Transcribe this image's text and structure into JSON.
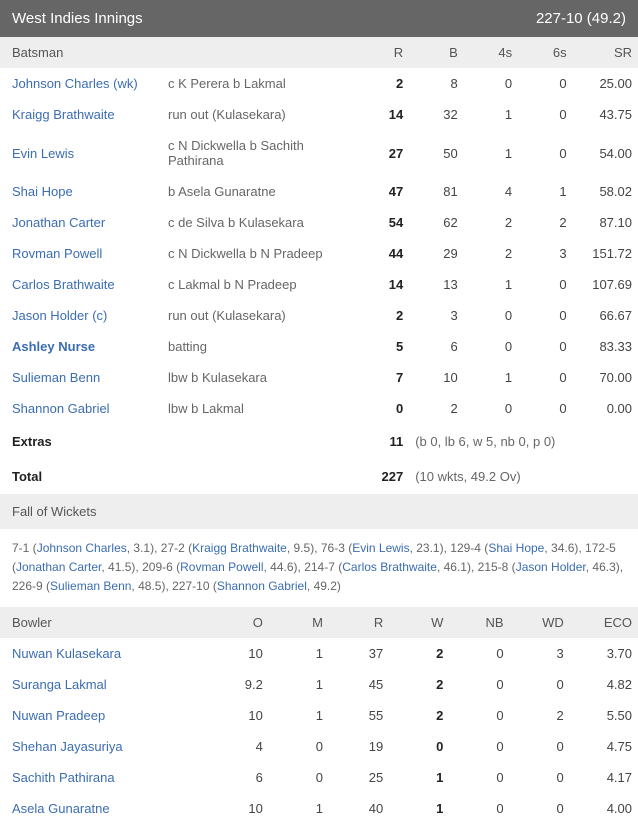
{
  "header": {
    "team": "West Indies Innings",
    "score": "227-10 (49.2)"
  },
  "batting": {
    "columns": {
      "batsman": "Batsman",
      "r": "R",
      "b": "B",
      "fours": "4s",
      "sixes": "6s",
      "sr": "SR"
    },
    "rows": [
      {
        "name": "Johnson Charles (wk)",
        "how": "c K Perera b Lakmal",
        "r": "2",
        "b": "8",
        "fours": "0",
        "sixes": "0",
        "sr": "25.00",
        "bold": false
      },
      {
        "name": "Kraigg Brathwaite",
        "how": "run out (Kulasekara)",
        "r": "14",
        "b": "32",
        "fours": "1",
        "sixes": "0",
        "sr": "43.75",
        "bold": false
      },
      {
        "name": "Evin Lewis",
        "how": "c N Dickwella b Sachith Pathirana",
        "r": "27",
        "b": "50",
        "fours": "1",
        "sixes": "0",
        "sr": "54.00",
        "bold": false
      },
      {
        "name": "Shai Hope",
        "how": "b Asela Gunaratne",
        "r": "47",
        "b": "81",
        "fours": "4",
        "sixes": "1",
        "sr": "58.02",
        "bold": false
      },
      {
        "name": "Jonathan Carter",
        "how": "c de Silva b Kulasekara",
        "r": "54",
        "b": "62",
        "fours": "2",
        "sixes": "2",
        "sr": "87.10",
        "bold": false
      },
      {
        "name": "Rovman Powell",
        "how": "c N Dickwella b N Pradeep",
        "r": "44",
        "b": "29",
        "fours": "2",
        "sixes": "3",
        "sr": "151.72",
        "bold": false
      },
      {
        "name": "Carlos Brathwaite",
        "how": "c Lakmal b N Pradeep",
        "r": "14",
        "b": "13",
        "fours": "1",
        "sixes": "0",
        "sr": "107.69",
        "bold": false
      },
      {
        "name": "Jason Holder (c)",
        "how": "run out (Kulasekara)",
        "r": "2",
        "b": "3",
        "fours": "0",
        "sixes": "0",
        "sr": "66.67",
        "bold": false
      },
      {
        "name": "Ashley Nurse",
        "how": "batting",
        "r": "5",
        "b": "6",
        "fours": "0",
        "sixes": "0",
        "sr": "83.33",
        "bold": true
      },
      {
        "name": "Sulieman Benn",
        "how": "lbw b Kulasekara",
        "r": "7",
        "b": "10",
        "fours": "1",
        "sixes": "0",
        "sr": "70.00",
        "bold": false
      },
      {
        "name": "Shannon Gabriel",
        "how": "lbw b Lakmal",
        "r": "0",
        "b": "2",
        "fours": "0",
        "sixes": "0",
        "sr": "0.00",
        "bold": false
      }
    ],
    "extras": {
      "label": "Extras",
      "value": "11",
      "detail": "(b 0, lb 6, w 5, nb 0, p 0)"
    },
    "total": {
      "label": "Total",
      "value": "227",
      "detail": "(10 wkts, 49.2 Ov)"
    }
  },
  "fow": {
    "title": "Fall of Wickets",
    "items": [
      {
        "score": "7-1",
        "name": "Johnson Charles",
        "over": "3.1"
      },
      {
        "score": "27-2",
        "name": "Kraigg Brathwaite",
        "over": "9.5"
      },
      {
        "score": "76-3",
        "name": "Evin Lewis",
        "over": "23.1"
      },
      {
        "score": "129-4",
        "name": "Shai Hope",
        "over": "34.6"
      },
      {
        "score": "172-5",
        "name": "Jonathan Carter",
        "over": "41.5"
      },
      {
        "score": "209-6",
        "name": "Rovman Powell",
        "over": "44.6"
      },
      {
        "score": "214-7",
        "name": "Carlos Brathwaite",
        "over": "46.1"
      },
      {
        "score": "215-8",
        "name": "Jason Holder",
        "over": "46.3"
      },
      {
        "score": "226-9",
        "name": "Sulieman Benn",
        "over": "48.5"
      },
      {
        "score": "227-10",
        "name": "Shannon Gabriel",
        "over": "49.2"
      }
    ]
  },
  "bowling": {
    "columns": {
      "bowler": "Bowler",
      "o": "O",
      "m": "M",
      "r": "R",
      "w": "W",
      "nb": "NB",
      "wd": "WD",
      "eco": "ECO"
    },
    "rows": [
      {
        "name": "Nuwan Kulasekara",
        "o": "10",
        "m": "1",
        "r": "37",
        "w": "2",
        "nb": "0",
        "wd": "3",
        "eco": "3.70"
      },
      {
        "name": "Suranga Lakmal",
        "o": "9.2",
        "m": "1",
        "r": "45",
        "w": "2",
        "nb": "0",
        "wd": "0",
        "eco": "4.82"
      },
      {
        "name": "Nuwan Pradeep",
        "o": "10",
        "m": "1",
        "r": "55",
        "w": "2",
        "nb": "0",
        "wd": "2",
        "eco": "5.50"
      },
      {
        "name": "Shehan Jayasuriya",
        "o": "4",
        "m": "0",
        "r": "19",
        "w": "0",
        "nb": "0",
        "wd": "0",
        "eco": "4.75"
      },
      {
        "name": "Sachith Pathirana",
        "o": "6",
        "m": "0",
        "r": "25",
        "w": "1",
        "nb": "0",
        "wd": "0",
        "eco": "4.17"
      },
      {
        "name": "Asela Gunaratne",
        "o": "10",
        "m": "1",
        "r": "40",
        "w": "1",
        "nb": "0",
        "wd": "0",
        "eco": "4.00"
      }
    ]
  }
}
